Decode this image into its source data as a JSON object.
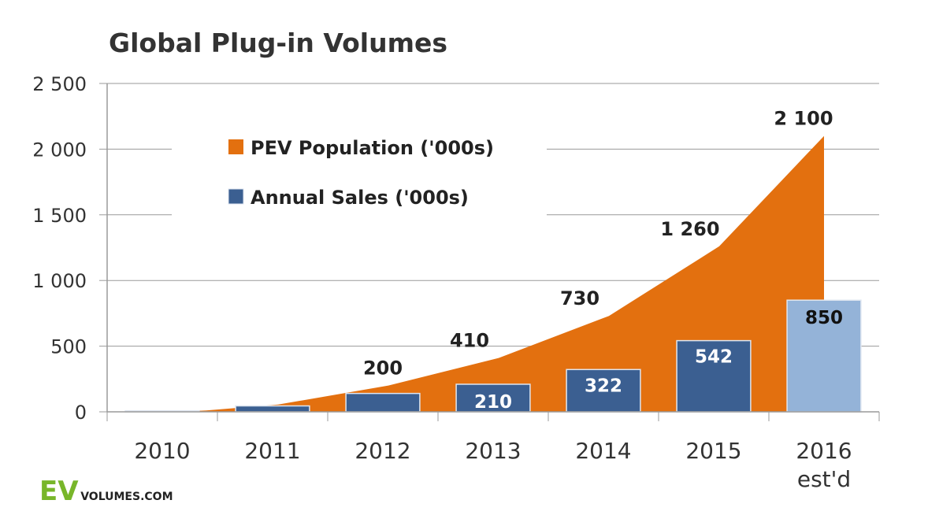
{
  "chart_data": {
    "type": "bar",
    "title": "Global Plug-in Volumes",
    "categories": [
      "2010",
      "2011",
      "2012",
      "2013",
      "2014",
      "2015",
      "2016"
    ],
    "category_sublabels": [
      "",
      "",
      "",
      "",
      "",
      "",
      "est'd"
    ],
    "ylim": [
      0,
      2500
    ],
    "yticks": [
      0,
      500,
      1000,
      1500,
      2000,
      2500
    ],
    "ytick_labels": [
      "0",
      "500",
      "1 000",
      "1 500",
      "2 000",
      "2 500"
    ],
    "grid": true,
    "legend_position": "upper-left inside",
    "series": [
      {
        "name": "PEV Population ('000s)",
        "kind": "area",
        "color": "#e3700f",
        "values": [
          10,
          55,
          200,
          410,
          730,
          1260,
          2100
        ],
        "labels": [
          "",
          "",
          "200",
          "410",
          "730",
          "1 260",
          "2 100"
        ]
      },
      {
        "name": "Annual Sales ('000s)",
        "kind": "bar",
        "color": "#3b5f91",
        "estimate_color": "#94b3d8",
        "values": [
          8,
          45,
          140,
          210,
          322,
          542,
          850
        ],
        "labels": [
          "",
          "",
          "",
          "210",
          "322",
          "542",
          "850"
        ]
      }
    ]
  },
  "logo": {
    "ev": "EV",
    "volumes": "VOLUMES.COM"
  }
}
